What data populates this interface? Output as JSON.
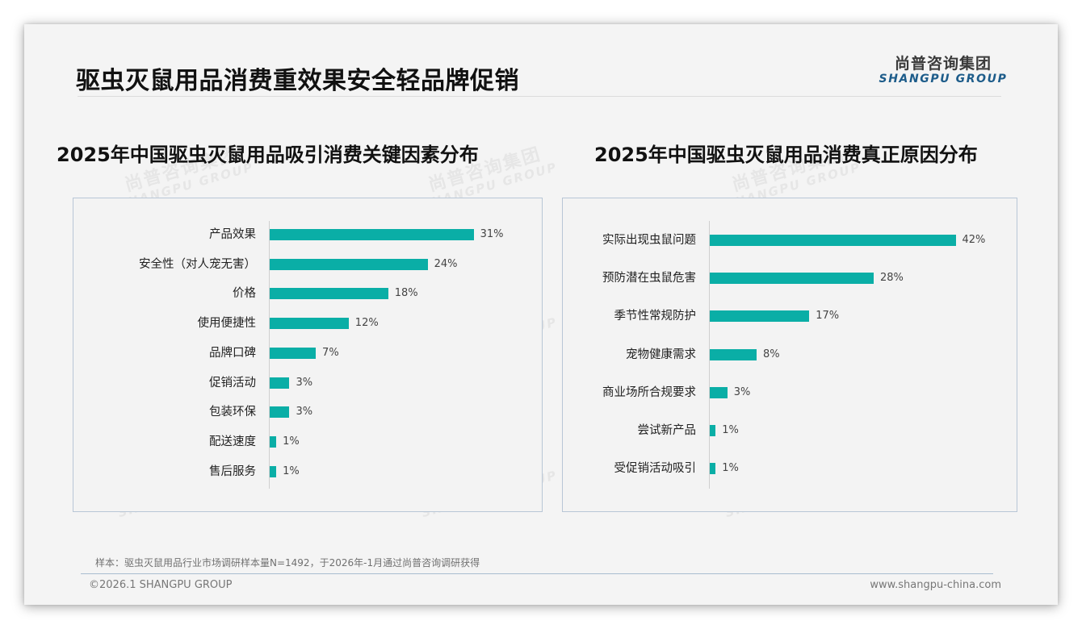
{
  "header": {
    "title": "驱虫灭鼠用品消费重效果安全轻品牌促销",
    "logo_cn": "尚普咨询集团",
    "logo_en": "SHANGPU GROUP"
  },
  "watermark": {
    "cn": "尚普咨询集团",
    "en": "SHANGPU GROUP"
  },
  "colors": {
    "bar": "#0aaea6",
    "border": "#b8c6d6",
    "logo_en": "#1d5c8a"
  },
  "charts": {
    "left": {
      "title": "2025年中国驱虫灭鼠用品吸引消费关键因素分布",
      "rows": [
        {
          "label": "产品效果",
          "value": 31,
          "display": "31%"
        },
        {
          "label": "安全性（对人宠无害）",
          "value": 24,
          "display": "24%"
        },
        {
          "label": "价格",
          "value": 18,
          "display": "18%"
        },
        {
          "label": "使用便捷性",
          "value": 12,
          "display": "12%"
        },
        {
          "label": "品牌口碑",
          "value": 7,
          "display": "7%"
        },
        {
          "label": "促销活动",
          "value": 3,
          "display": "3%"
        },
        {
          "label": "包装环保",
          "value": 3,
          "display": "3%"
        },
        {
          "label": "配送速度",
          "value": 1,
          "display": "1%"
        },
        {
          "label": "售后服务",
          "value": 1,
          "display": "1%"
        }
      ]
    },
    "right": {
      "title": "2025年中国驱虫灭鼠用品消费真正原因分布",
      "rows": [
        {
          "label": "实际出现虫鼠问题",
          "value": 42,
          "display": "42%"
        },
        {
          "label": "预防潜在虫鼠危害",
          "value": 28,
          "display": "28%"
        },
        {
          "label": "季节性常规防护",
          "value": 17,
          "display": "17%"
        },
        {
          "label": "宠物健康需求",
          "value": 8,
          "display": "8%"
        },
        {
          "label": "商业场所合规要求",
          "value": 3,
          "display": "3%"
        },
        {
          "label": "尝试新产品",
          "value": 1,
          "display": "1%"
        },
        {
          "label": "受促销活动吸引",
          "value": 1,
          "display": "1%"
        }
      ]
    }
  },
  "chart_data": [
    {
      "type": "bar",
      "orientation": "horizontal",
      "title": "2025年中国驱虫灭鼠用品吸引消费关键因素分布",
      "categories": [
        "产品效果",
        "安全性（对人宠无害）",
        "价格",
        "使用便捷性",
        "品牌口碑",
        "促销活动",
        "包装环保",
        "配送速度",
        "售后服务"
      ],
      "values": [
        31,
        24,
        18,
        12,
        7,
        3,
        3,
        1,
        1
      ],
      "unit": "%",
      "xlabel": "",
      "ylabel": "",
      "grid": false,
      "legend": null,
      "data_labels": true
    },
    {
      "type": "bar",
      "orientation": "horizontal",
      "title": "2025年中国驱虫灭鼠用品消费真正原因分布",
      "categories": [
        "实际出现虫鼠问题",
        "预防潜在虫鼠危害",
        "季节性常规防护",
        "宠物健康需求",
        "商业场所合规要求",
        "尝试新产品",
        "受促销活动吸引"
      ],
      "values": [
        42,
        28,
        17,
        8,
        3,
        1,
        1
      ],
      "unit": "%",
      "xlabel": "",
      "ylabel": "",
      "grid": false,
      "legend": null,
      "data_labels": true
    }
  ],
  "footer": {
    "note": "样本：驱虫灭鼠用品行业市场调研样本量N=1492，于2026年-1月通过尚普咨询调研获得",
    "copyright": "©2026.1 SHANGPU GROUP",
    "website": "www.shangpu-china.com"
  }
}
